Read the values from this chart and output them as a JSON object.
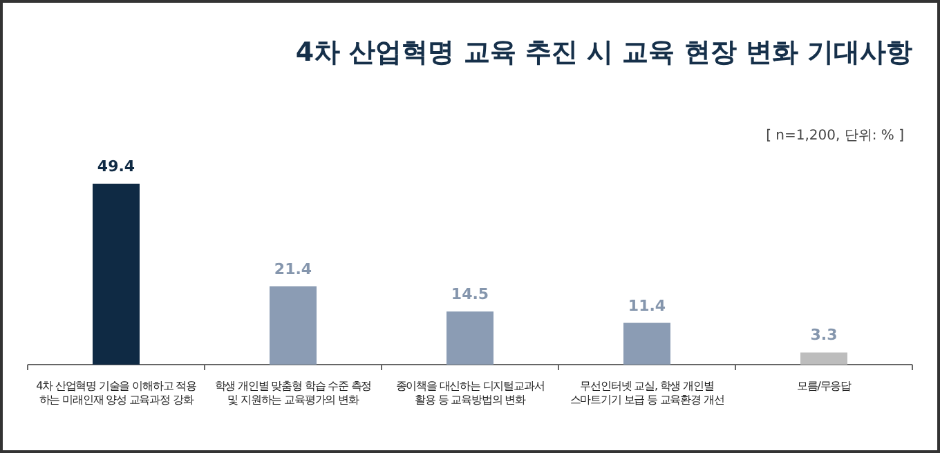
{
  "chart_data": {
    "type": "bar",
    "title": "4차 산업혁명 교육 추진 시 교육 현장 변화 기대사항",
    "annotations": [
      "[ n=1,200, 단위: % ]"
    ],
    "categories": [
      "4차 산업혁명 기술을 이해하고 적용\n하는 미래인재 양성 교육과정 강화",
      "학생 개인별 맞춤형 학습 수준 측정\n및 지원하는 교육평가의 변화",
      "종이책을 대신하는 디지털교과서\n활용 등 교육방법의 변화",
      "무선인터넷 교실, 학생 개인별\n스마트기기 보급 등 교육환경 개선",
      "모름/무응답"
    ],
    "values": [
      49.4,
      21.4,
      14.5,
      11.4,
      3.3
    ],
    "colors": [
      "#0f2a44",
      "#8b9cb4",
      "#8b9cb4",
      "#8b9cb4",
      "#bdbdbd"
    ],
    "data_labels": true
  }
}
